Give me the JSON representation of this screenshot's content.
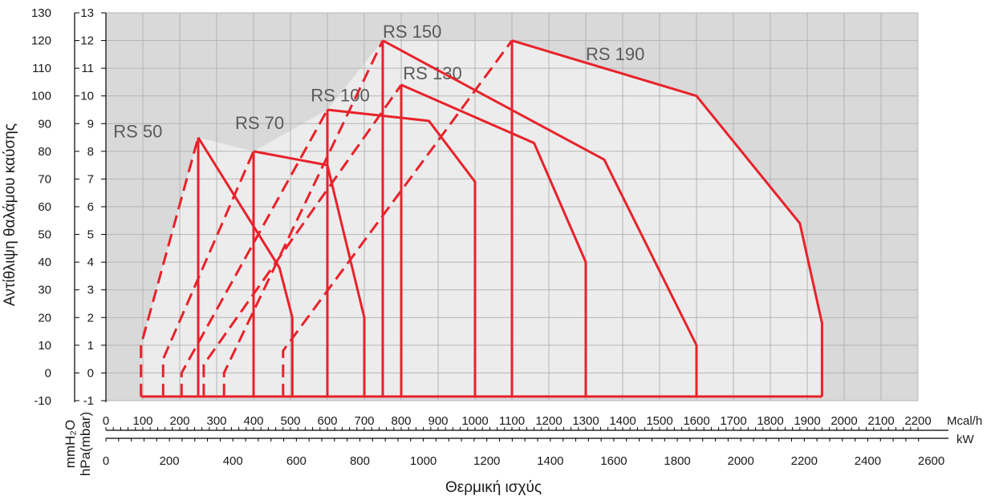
{
  "chart_data": {
    "type": "area",
    "title": "",
    "ylabel": "Αντίθλιψη θαλάμου καύσης",
    "xlabel": "Θερμική ισχύς",
    "unit_labels": {
      "mm_h2o": "mmH₂O",
      "hpa": "hPa(mbar)",
      "mcal": "Mcal/h",
      "kw": "kW"
    },
    "y_axis_mmh2o": {
      "ticks": [
        "-10",
        "0",
        "10",
        "20",
        "30",
        "40",
        "50",
        "60",
        "70",
        "80",
        "90",
        "100",
        "110",
        "120",
        "130"
      ],
      "range": [
        -10,
        130
      ]
    },
    "y_axis_hpa": {
      "ticks": [
        "-1",
        "0",
        "1",
        "2",
        "3",
        "4",
        "5",
        "6",
        "7",
        "8",
        "9",
        "10",
        "11",
        "12",
        "13"
      ],
      "range": [
        -1,
        13
      ]
    },
    "x_axis_mcal": {
      "ticks": [
        "0",
        "100",
        "200",
        "300",
        "400",
        "500",
        "600",
        "700",
        "800",
        "900",
        "1000",
        "1100",
        "1200",
        "1300",
        "1400",
        "1500",
        "1600",
        "1700",
        "1800",
        "1900",
        "2000",
        "2100",
        "2200"
      ],
      "range": [
        0,
        2200
      ]
    },
    "x_axis_kw": {
      "ticks": [
        "0",
        "200",
        "400",
        "600",
        "800",
        "1000",
        "1200",
        "1400",
        "1600",
        "1800",
        "2000",
        "2200",
        "2400",
        "2600"
      ]
    },
    "grid": true,
    "plot_background": "#d9d9d9",
    "envelope_fill": "#ececec",
    "curve_color": "#e8222b",
    "series": [
      {
        "name": "RS 50",
        "label_at": {
          "x": 20,
          "y": 85
        },
        "dashed": [
          [
            95,
            -8.5
          ],
          [
            95,
            10
          ],
          [
            250,
            85
          ]
        ],
        "solid": [
          [
            250,
            85
          ],
          [
            470,
            38
          ],
          [
            505,
            20
          ],
          [
            505,
            -8.5
          ]
        ],
        "verticals": [
          250
        ]
      },
      {
        "name": "RS 70",
        "label_at": {
          "x": 350,
          "y": 88
        },
        "dashed": [
          [
            155,
            -8.5
          ],
          [
            155,
            5
          ],
          [
            400,
            80
          ]
        ],
        "solid": [
          [
            400,
            80
          ],
          [
            600,
            75
          ],
          [
            700,
            20
          ],
          [
            700,
            -8.5
          ]
        ],
        "verticals": [
          400
        ]
      },
      {
        "name": "RS 100",
        "label_at": {
          "x": 555,
          "y": 98
        },
        "dashed": [
          [
            205,
            -8.5
          ],
          [
            205,
            0
          ],
          [
            600,
            95
          ]
        ],
        "solid": [
          [
            600,
            95
          ],
          [
            875,
            91
          ],
          [
            1000,
            69
          ],
          [
            1000,
            -8.5
          ]
        ],
        "verticals": [
          600
        ]
      },
      {
        "name": "RS 130",
        "label_at": {
          "x": 805,
          "y": 106
        },
        "dashed": [
          [
            265,
            -8.5
          ],
          [
            265,
            3
          ],
          [
            800,
            104
          ]
        ],
        "solid": [
          [
            800,
            104
          ],
          [
            1160,
            83
          ],
          [
            1300,
            40
          ],
          [
            1300,
            -8.5
          ]
        ],
        "verticals": [
          800
        ]
      },
      {
        "name": "RS 150",
        "label_at": {
          "x": 750,
          "y": 121
        },
        "dashed": [
          [
            320,
            -8.5
          ],
          [
            320,
            0
          ],
          [
            750,
            120
          ]
        ],
        "solid": [
          [
            750,
            120
          ],
          [
            1350,
            77
          ],
          [
            1600,
            10
          ],
          [
            1600,
            -8.5
          ]
        ],
        "verticals": [
          750
        ]
      },
      {
        "name": "RS 190",
        "label_at": {
          "x": 1300,
          "y": 113
        },
        "dashed": [
          [
            480,
            -8.5
          ],
          [
            480,
            8
          ],
          [
            1100,
            120
          ]
        ],
        "solid": [
          [
            1100,
            120
          ],
          [
            1600,
            100
          ],
          [
            1880,
            54
          ],
          [
            1940,
            18
          ],
          [
            1940,
            -8.5
          ]
        ],
        "verticals": [
          1100
        ]
      }
    ],
    "baseline": {
      "from": 95,
      "to": 1940,
      "y": -8.5
    }
  }
}
